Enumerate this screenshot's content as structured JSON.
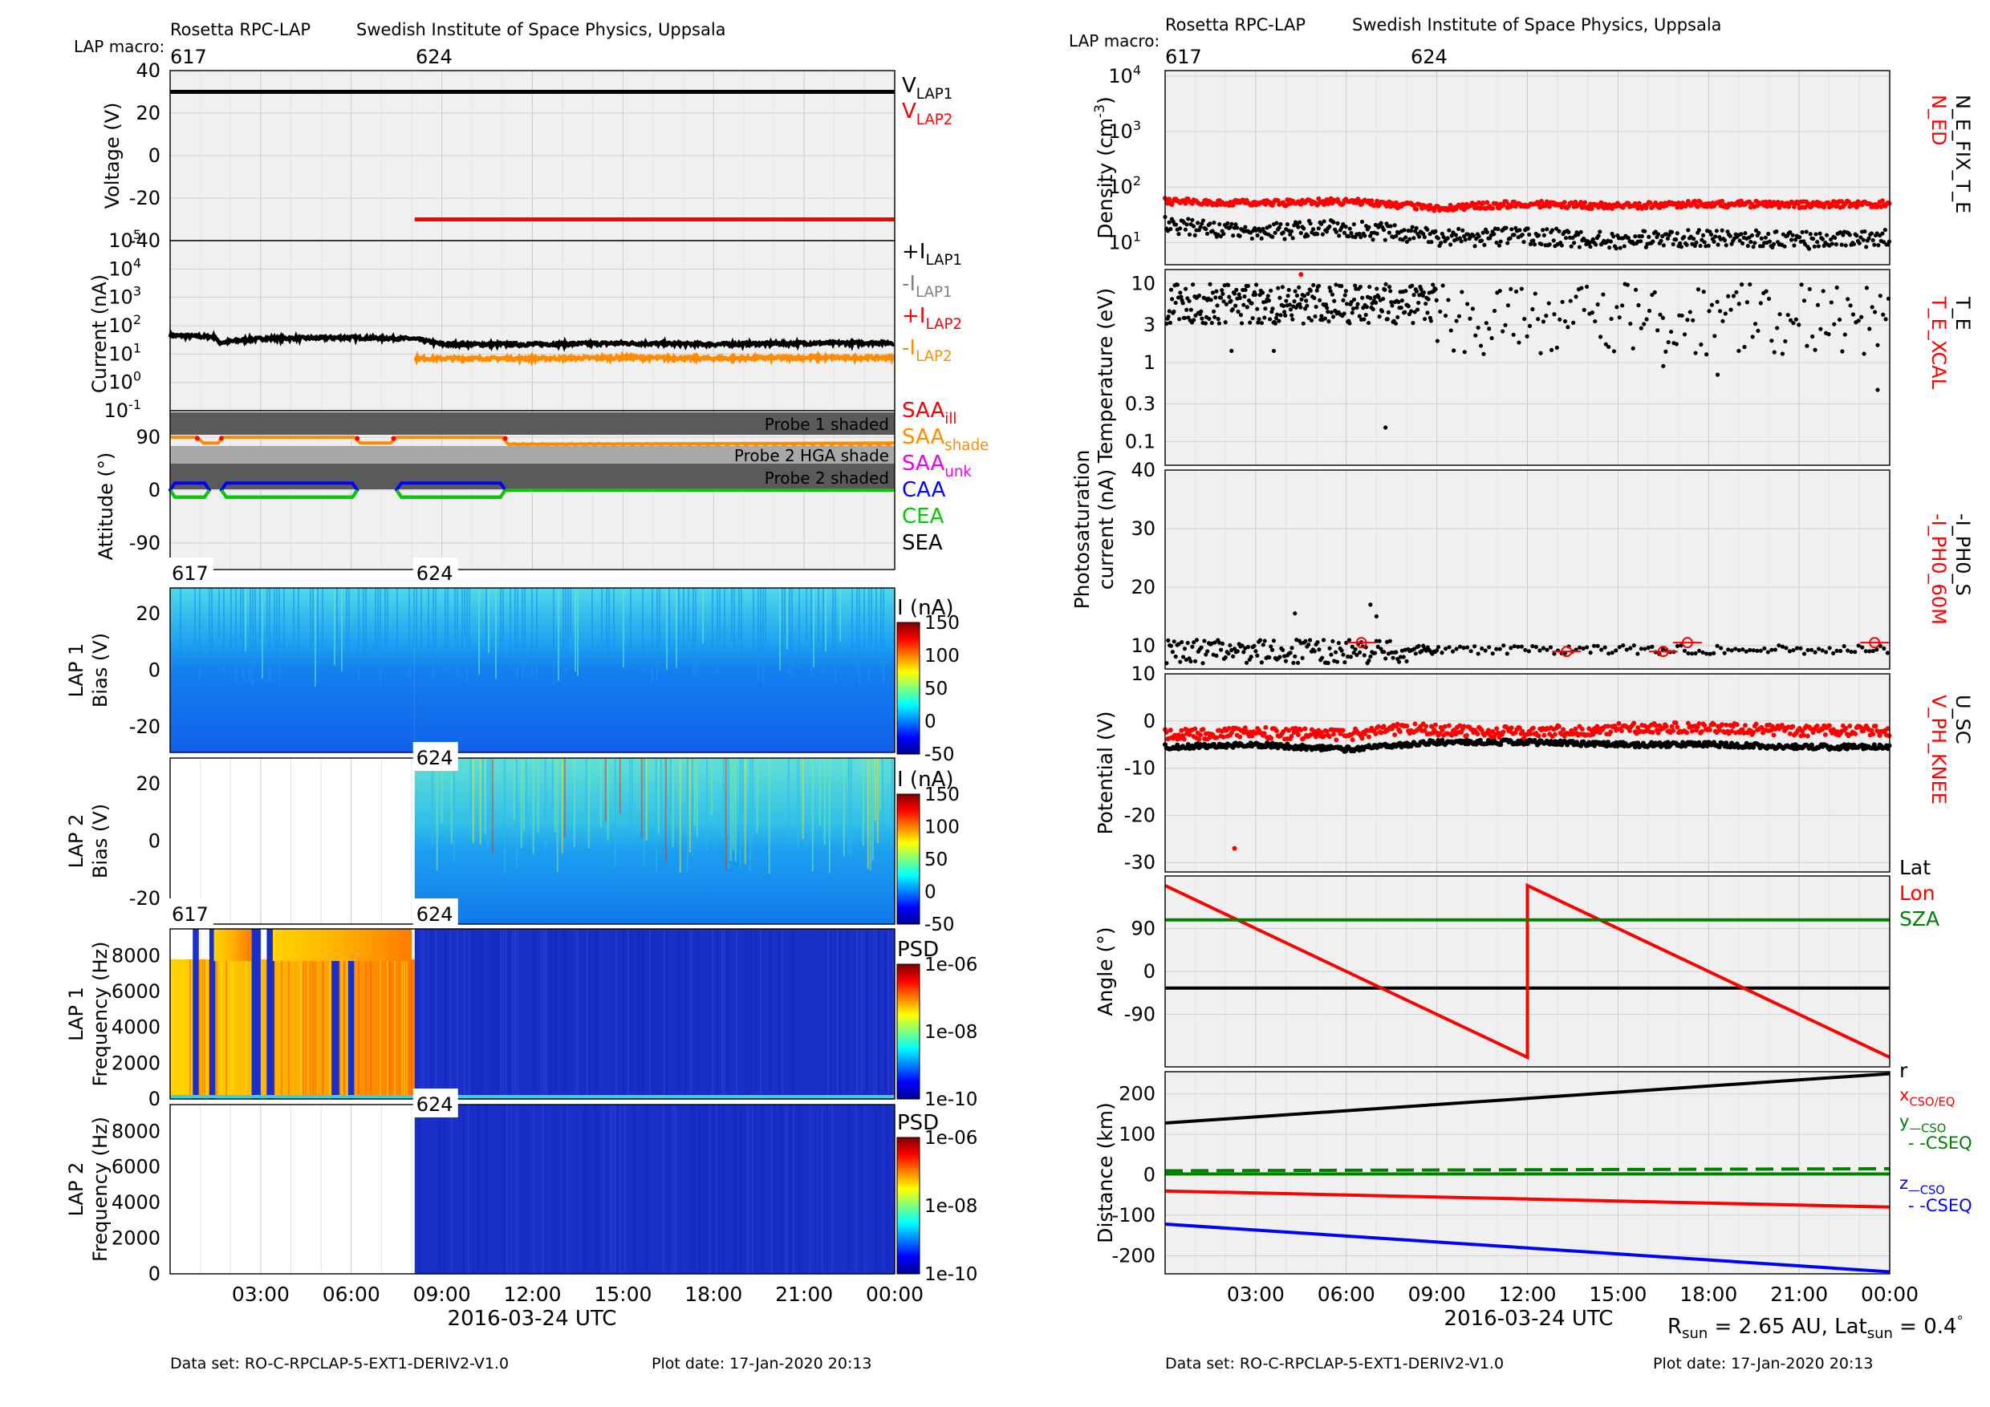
{
  "header": {
    "left": {
      "instrument": "Rosetta RPC-LAP",
      "institute": "Swedish Institute of Space Physics, Uppsala",
      "macro_label": "LAP macro:"
    },
    "right": {
      "instrument": "Rosetta RPC-LAP",
      "institute": "Swedish Institute of Space Physics, Uppsala",
      "macro_label": "LAP macro:"
    }
  },
  "footer": {
    "left": {
      "dataset": "Data set: RO-C-RPCLAP-5-EXT1-DERIV2-V1.0",
      "plot_date": "Plot date: 17-Jan-2020 20:13"
    },
    "right": {
      "dataset": "Data set: RO-C-RPCLAP-5-EXT1-DERIV2-V1.0",
      "plot_date": "Plot date: 17-Jan-2020 20:13"
    }
  },
  "xaxis": {
    "label": "2016-03-24 UTC",
    "range_hours": [
      0,
      24
    ],
    "ticks": [
      {
        "h": 3,
        "label": "03:00"
      },
      {
        "h": 6,
        "label": "06:00"
      },
      {
        "h": 9,
        "label": "09:00"
      },
      {
        "h": 12,
        "label": "12:00"
      },
      {
        "h": 15,
        "label": "15:00"
      },
      {
        "h": 18,
        "label": "18:00"
      },
      {
        "h": 21,
        "label": "21:00"
      },
      {
        "h": 24,
        "label": "00:00"
      }
    ]
  },
  "macros": [
    {
      "h": 0,
      "label": "617"
    },
    {
      "h": 8.1,
      "label": "624"
    }
  ],
  "solar_info": "R_sun = 2.65 AU, Lat_sun = 0.4°",
  "colors": {
    "black": "#000000",
    "red": "#ff0000",
    "orange": "#ff8c00",
    "gray": "#808080",
    "green": "#00cc00",
    "darkgreen": "#008000",
    "blue": "#0000ff",
    "magenta": "#ee00ee",
    "panel_bg": "#f0f0f0",
    "grid": "#d0d0d0"
  },
  "chart_data": [
    {
      "id": "voltage",
      "type": "line",
      "ylabel": "Voltage (V)",
      "ylim": [
        -40,
        40
      ],
      "yticks": [
        "40",
        "20",
        "0",
        "-20",
        "-40"
      ],
      "legend": [
        {
          "text": "V",
          "sub": "LAP1",
          "color": "#000000"
        },
        {
          "text": "V",
          "sub": "LAP2",
          "color": "#ff0000"
        }
      ],
      "series": [
        {
          "name": "V_LAP1",
          "color": "#000000",
          "x": [
            0,
            24
          ],
          "y": [
            30,
            30
          ]
        },
        {
          "name": "V_LAP2",
          "color": "#ff0000",
          "x": [
            8.1,
            24
          ],
          "y": [
            -30,
            -30
          ]
        }
      ]
    },
    {
      "id": "current",
      "type": "line",
      "ylabel": "Current (nA)",
      "log": true,
      "yticks": [
        "10^5",
        "10^4",
        "10^3",
        "10^2",
        "10^1",
        "10^0",
        "10^-1"
      ],
      "legend": [
        {
          "text": "+I",
          "sub": "LAP1",
          "color": "#000000"
        },
        {
          "text": "-I",
          "sub": "LAP1",
          "color": "#808080"
        },
        {
          "text": "+I",
          "sub": "LAP2",
          "color": "#ff0000"
        },
        {
          "text": "-I",
          "sub": "LAP2",
          "color": "#ff8c00"
        }
      ],
      "series": [
        {
          "name": "-I_LAP1",
          "color": "#000000",
          "x": [
            0,
            1.5,
            1.6,
            3,
            6,
            8,
            9,
            12,
            15,
            18,
            21,
            24
          ],
          "y": [
            45,
            40,
            25,
            35,
            38,
            35,
            22,
            22,
            24,
            22,
            24,
            25
          ]
        },
        {
          "name": "-I_LAP2",
          "color": "#ff8c00",
          "x": [
            8.1,
            12,
            15,
            18,
            21,
            24
          ],
          "y": [
            7,
            7,
            7.5,
            7,
            7.5,
            7.5
          ]
        }
      ]
    },
    {
      "id": "attitude",
      "type": "line",
      "ylabel": "Attitude (°)",
      "ylim": [
        -135,
        135
      ],
      "yticks": [
        "90",
        "0",
        "-90"
      ],
      "bands": [
        "Probe 1 shaded",
        "Probe 2 HGA shade",
        "Probe 2 shaded"
      ],
      "legend": [
        {
          "text": "SAA",
          "sub": "ill",
          "color": "#ff0000"
        },
        {
          "text": "SAA",
          "sub": "shade",
          "color": "#ff8c00"
        },
        {
          "text": "SAA",
          "sub": "unk",
          "color": "#ee00ee"
        },
        {
          "text": "CAA",
          "sub": "",
          "color": "#0000ff"
        },
        {
          "text": "CEA",
          "sub": "",
          "color": "#00cc00"
        },
        {
          "text": "SEA",
          "sub": "",
          "color": "#000000"
        }
      ]
    },
    {
      "id": "lap1_bias",
      "type": "heatmap",
      "ylabel": "LAP 1 Bias (V)",
      "ylim": [
        -29,
        29
      ],
      "yticks": [
        "20",
        "0",
        "-20"
      ],
      "colorbar_label": "I (nA)",
      "colorbar_ticks": [
        "150",
        "100",
        "50",
        "0",
        "-50"
      ],
      "macro_labels": [
        "617",
        "624"
      ]
    },
    {
      "id": "lap2_bias",
      "type": "heatmap",
      "ylabel": "LAP 2 Bias (V)",
      "ylim": [
        -29,
        29
      ],
      "yticks": [
        "20",
        "0",
        "-20"
      ],
      "colorbar_label": "I (nA)",
      "colorbar_ticks": [
        "150",
        "100",
        "50",
        "0",
        "-50"
      ],
      "macro_labels": [
        "624"
      ]
    },
    {
      "id": "lap1_freq",
      "type": "heatmap",
      "ylabel": "LAP 1 Frequency (Hz)",
      "ylim": [
        0,
        9500
      ],
      "yticks": [
        "8000",
        "6000",
        "4000",
        "2000",
        "0"
      ],
      "colorbar_label": "PSD",
      "colorbar_ticks": [
        "1e-06",
        "1e-08",
        "1e-10"
      ],
      "macro_labels": [
        "617",
        "624"
      ]
    },
    {
      "id": "lap2_freq",
      "type": "heatmap",
      "ylabel": "LAP 2 Frequency (Hz)",
      "ylim": [
        0,
        9500
      ],
      "yticks": [
        "8000",
        "6000",
        "4000",
        "2000",
        "0"
      ],
      "colorbar_label": "PSD",
      "colorbar_ticks": [
        "1e-06",
        "1e-08",
        "1e-10"
      ],
      "macro_labels": [
        "624"
      ]
    },
    {
      "id": "density",
      "type": "scatter",
      "ylabel": "Density (cm^-3)",
      "log": true,
      "yticks": [
        "10^4",
        "10^3",
        "10^2",
        "10^1"
      ],
      "legend": [
        {
          "text": "N_ED",
          "color": "#ff0000"
        },
        {
          "text": "N_E_FIX_T_E",
          "color": "#000000"
        }
      ],
      "series": [
        {
          "name": "N_ED",
          "color": "#ff0000",
          "x": [
            0,
            3,
            6,
            9,
            12,
            15,
            18,
            21,
            24
          ],
          "y": [
            55,
            52,
            55,
            42,
            50,
            45,
            50,
            48,
            50
          ]
        },
        {
          "name": "N_E_FIX_T_E",
          "color": "#000000",
          "x": [
            0,
            3,
            6,
            9,
            12,
            15,
            18,
            21,
            24
          ],
          "y": [
            20,
            16,
            18,
            12,
            13,
            11,
            12,
            11,
            12
          ]
        }
      ]
    },
    {
      "id": "temperature",
      "type": "scatter",
      "ylabel": "Temperature (eV)",
      "log": true,
      "yticks": [
        "10",
        "3",
        "1",
        "0.3",
        "0.1"
      ],
      "legend": [
        {
          "text": "T_E_XCAL",
          "color": "#ff0000"
        },
        {
          "text": "T_E",
          "color": "#000000"
        }
      ],
      "series": [
        {
          "name": "T_E",
          "color": "#000000",
          "x": [
            0,
            3,
            6,
            9,
            12,
            15,
            18,
            21,
            24
          ],
          "y": [
            6,
            5.5,
            5.5,
            4,
            3.5,
            3.5,
            3.5,
            3.5,
            3
          ]
        }
      ]
    },
    {
      "id": "photosat",
      "type": "scatter",
      "ylabel": "Photosaturation current (nA)",
      "ylim": [
        6,
        40
      ],
      "yticks": [
        "40",
        "30",
        "20",
        "10"
      ],
      "legend": [
        {
          "text": "-I_PH0_60M",
          "color": "#ff0000"
        },
        {
          "text": "-I_PH0_S",
          "color": "#000000"
        }
      ],
      "series": [
        {
          "name": "-I_PH0_60M",
          "color": "#ff0000",
          "x": [
            6.5,
            13.3,
            16.5,
            17.3,
            23.5
          ],
          "y": [
            10.5,
            9,
            9,
            10.5,
            10.5
          ]
        },
        {
          "name": "-I_PH0_S",
          "color": "#000000",
          "x": [
            0,
            3,
            6,
            9,
            12,
            15,
            18,
            21,
            24
          ],
          "y": [
            10,
            9,
            8.5,
            8.5,
            9,
            9.5,
            9.5,
            9.5,
            10
          ]
        }
      ]
    },
    {
      "id": "potential",
      "type": "scatter",
      "ylabel": "Potential (V)",
      "ylim": [
        -32,
        10
      ],
      "yticks": [
        "10",
        "0",
        "-10",
        "-20",
        "-30"
      ],
      "legend": [
        {
          "text": "V_PH_KNEE",
          "color": "#ff0000"
        },
        {
          "text": "U_SC",
          "color": "#000000"
        }
      ],
      "series": [
        {
          "name": "V_PH_KNEE",
          "color": "#ff0000",
          "x": [
            0,
            3,
            6,
            8,
            9,
            12,
            15,
            18,
            21,
            24
          ],
          "y": [
            -3,
            -2.5,
            -3,
            -1.5,
            -2,
            -2.5,
            -1.5,
            -1.5,
            -2,
            -2
          ]
        },
        {
          "name": "U_SC",
          "color": "#000000",
          "x": [
            0,
            3,
            6,
            9,
            12,
            15,
            18,
            21,
            24
          ],
          "y": [
            -5.5,
            -5,
            -6,
            -4.5,
            -4.5,
            -5,
            -5,
            -5.5,
            -5.5
          ]
        }
      ]
    },
    {
      "id": "angle",
      "type": "line",
      "ylabel": "Angle (°)",
      "ylim": [
        -200,
        200
      ],
      "yticks": [
        "90",
        "0",
        "-90"
      ],
      "legend": [
        {
          "text": "Lat",
          "color": "#000000"
        },
        {
          "text": "Lon",
          "color": "#ff0000"
        },
        {
          "text": "SZA",
          "color": "#008000"
        }
      ],
      "series": [
        {
          "name": "Lat",
          "color": "#000000",
          "x": [
            0,
            24
          ],
          "y": [
            -35,
            -35
          ]
        },
        {
          "name": "Lon",
          "color": "#ff0000",
          "x": [
            0,
            12,
            12,
            24
          ],
          "y": [
            180,
            -180,
            180,
            -180
          ]
        },
        {
          "name": "SZA",
          "color": "#008000",
          "x": [
            0,
            24
          ],
          "y": [
            108,
            108
          ]
        }
      ]
    },
    {
      "id": "distance",
      "type": "line",
      "ylabel": "Distance (km)",
      "ylim": [
        -245,
        255
      ],
      "yticks": [
        "200",
        "100",
        "0",
        "-100",
        "-200"
      ],
      "legend": [
        {
          "text": "r",
          "color": "#000000"
        },
        {
          "text": "x",
          "sub": "CSO/EQ",
          "color": "#ff0000"
        },
        {
          "text": "y",
          "sub": "—CSO",
          "color": "#008000"
        },
        {
          "text": "- -CSEQ",
          "color": "#008000"
        },
        {
          "text": "z",
          "sub": "—CSO",
          "color": "#0000ff"
        },
        {
          "text": "- -CSEQ",
          "color": "#0000ff"
        }
      ],
      "series": [
        {
          "name": "r",
          "color": "#000000",
          "x": [
            0,
            24
          ],
          "y": [
            128,
            250
          ]
        },
        {
          "name": "x",
          "color": "#ff0000",
          "x": [
            0,
            24
          ],
          "y": [
            -40,
            -80
          ]
        },
        {
          "name": "y CSO",
          "color": "#008000",
          "x": [
            0,
            24
          ],
          "y": [
            2,
            2
          ]
        },
        {
          "name": "y CSEQ",
          "color": "#008000",
          "x": [
            0,
            24
          ],
          "y": [
            10,
            15
          ],
          "dash": true
        },
        {
          "name": "z",
          "color": "#0000ff",
          "x": [
            0,
            24
          ],
          "y": [
            -122,
            -240
          ]
        }
      ]
    }
  ]
}
